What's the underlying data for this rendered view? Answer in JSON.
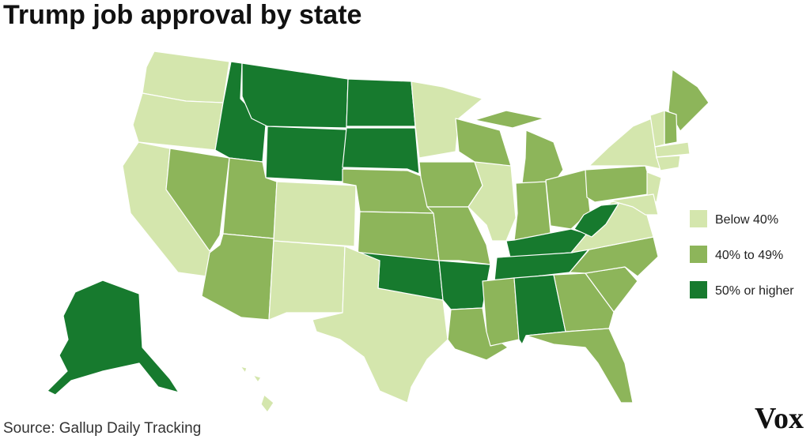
{
  "title": "Trump job approval by state",
  "legend": [
    {
      "label": "Below 40%",
      "color": "#d4e6ad"
    },
    {
      "label": "40% to 49%",
      "color": "#8db55a"
    },
    {
      "label": "50% or higher",
      "color": "#177a2e"
    }
  ],
  "source": "Source: Gallup Daily Tracking",
  "logo": "Vox"
}
